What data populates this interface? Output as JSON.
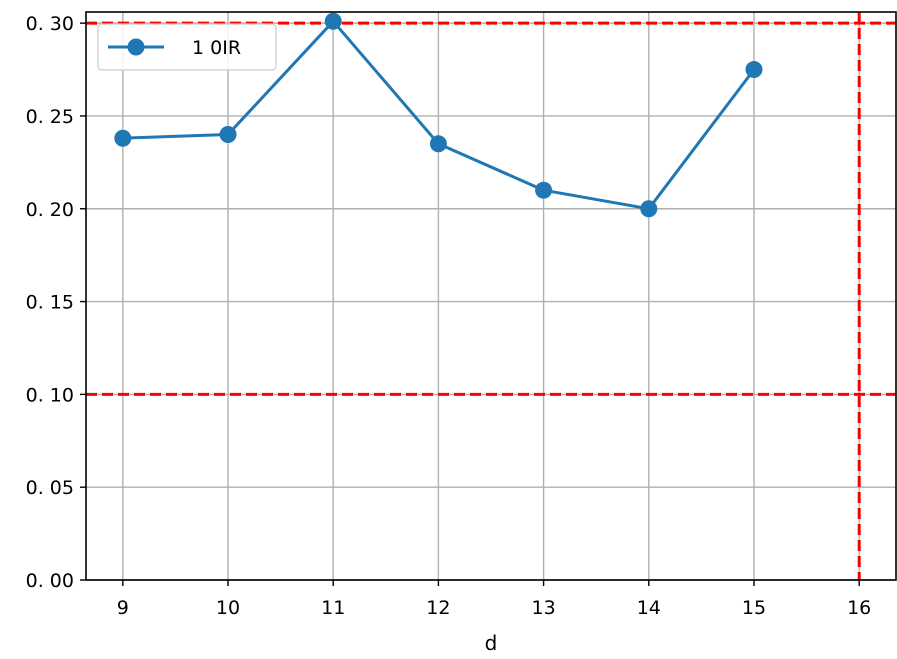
{
  "chart_data": {
    "type": "line",
    "title": "",
    "xlabel": "d",
    "ylabel": "",
    "x": [
      9,
      10,
      11,
      12,
      13,
      14,
      15
    ],
    "xlim": [
      8.65,
      16.35
    ],
    "ylim": [
      0.0,
      0.306
    ],
    "x_ticks": [
      9,
      10,
      11,
      12,
      13,
      14,
      15,
      16
    ],
    "x_tick_labels": [
      "9",
      "10",
      "11",
      "12",
      "13",
      "14",
      "15",
      "16"
    ],
    "y_ticks": [
      0.0,
      0.05,
      0.1,
      0.15,
      0.2,
      0.25,
      0.3
    ],
    "y_tick_labels": [
      "0. 00",
      "0. 05",
      "0. 10",
      "0. 15",
      "0. 20",
      "0. 25",
      "0. 30"
    ],
    "grid": true,
    "legend_position": "top-left",
    "series": [
      {
        "name": "1 0IR",
        "color": "#1f77b4",
        "marker": "circle",
        "values": [
          0.238,
          0.24,
          0.301,
          0.235,
          0.21,
          0.2,
          0.275
        ]
      }
    ],
    "reference_lines": {
      "color": "#ff0000",
      "style": "dashed",
      "horizontal": [
        0.1,
        0.3
      ],
      "vertical": [
        16
      ]
    }
  }
}
